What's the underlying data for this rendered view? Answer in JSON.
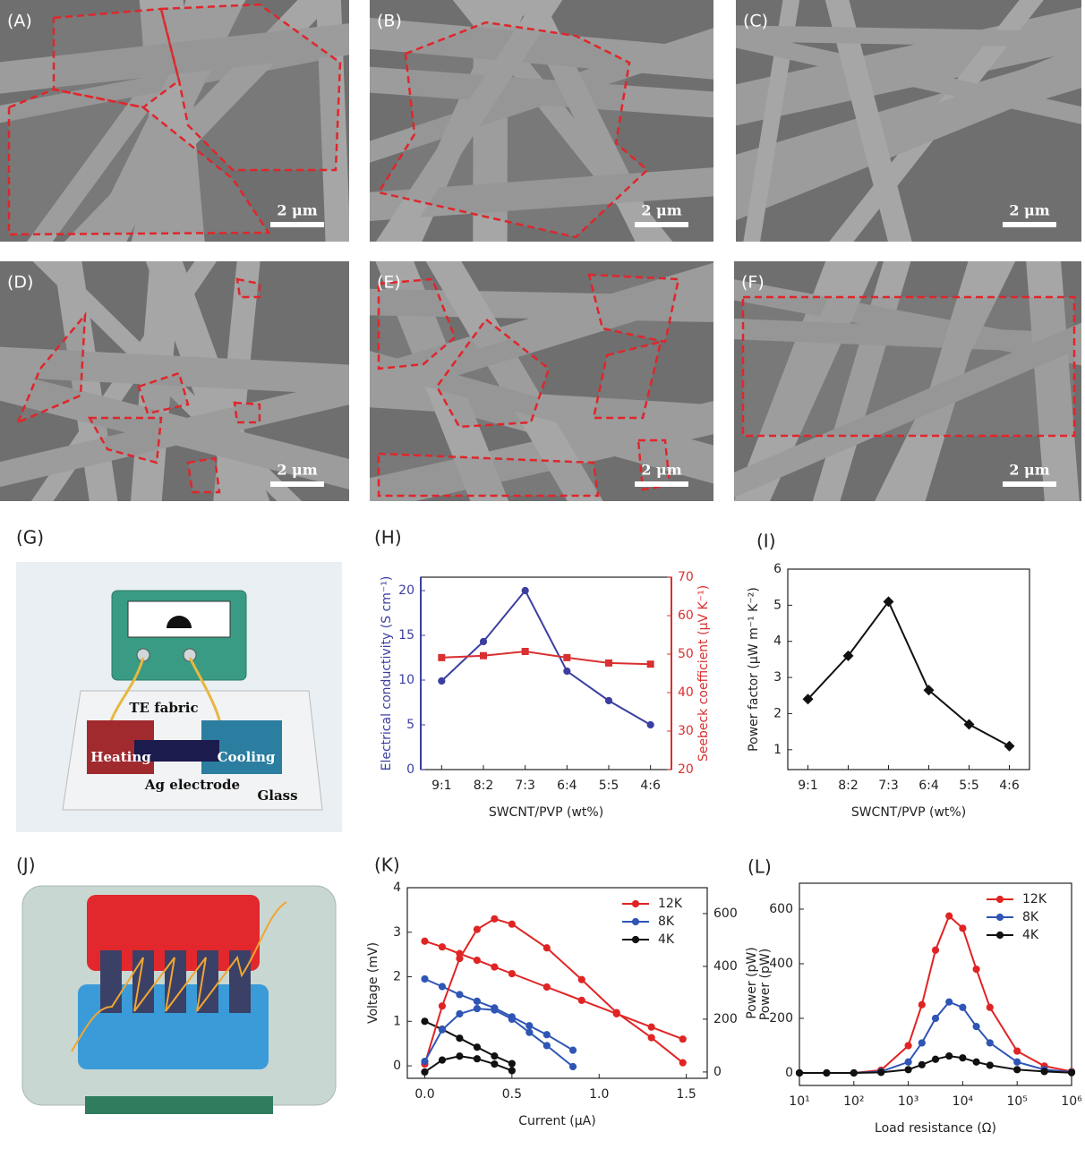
{
  "images": [
    {
      "label": "(A)",
      "scale_bar": "2 μm"
    },
    {
      "label": "(B)",
      "scale_bar": "2 μm"
    },
    {
      "label": "(C)",
      "scale_bar": "2 μm"
    },
    {
      "label": "(D)",
      "scale_bar": "2 μm"
    },
    {
      "label": "(E)",
      "scale_bar": "2 μm"
    },
    {
      "label": "(F)",
      "scale_bar": "2 μm"
    }
  ],
  "diagram_g": {
    "label": "(G)",
    "te_fabric": "TE fabric",
    "heating": "Heating",
    "cooling": "Cooling",
    "ag_electrode": "Ag electrode",
    "glass": "Glass"
  },
  "diagram_j": {
    "label": "(J)"
  },
  "chart_data": [
    {
      "type": "line",
      "panel_label": "(H)",
      "x_label": "SWCNT/PVP (wt%)",
      "y_label": "Electrical conductivity (S cm⁻¹)",
      "y2_label": "Seebeck coefficient (μV K⁻¹)",
      "color_axes": true,
      "categories": [
        "9:1",
        "8:2",
        "7:3",
        "6:4",
        "5:5",
        "4:6"
      ],
      "ylim": [
        0,
        21.5
      ],
      "yticks": [
        0,
        5,
        10,
        15,
        20
      ],
      "y2lim": [
        20,
        70
      ],
      "y2ticks": [
        20,
        30,
        40,
        50,
        60,
        70
      ],
      "series": [
        {
          "color": "#3b3fa0",
          "marker": "circle",
          "values": [
            9.9,
            14.3,
            20,
            11,
            7.7,
            5
          ]
        },
        {
          "color": "#d93030",
          "marker": "square",
          "axis": "y2",
          "values": [
            49.1,
            49.6,
            50.7,
            49.1,
            47.7,
            47.4
          ]
        }
      ]
    },
    {
      "type": "line",
      "panel_label": "(I)",
      "x_label": "SWCNT/PVP (wt%)",
      "y_label": "Power factor (μW m⁻¹ K⁻²)",
      "categories": [
        "9:1",
        "8:2",
        "7:3",
        "6:4",
        "5:5",
        "4:6"
      ],
      "ylim": [
        0.45,
        6
      ],
      "yticks": [
        1,
        2,
        3,
        4,
        5,
        6
      ],
      "series": [
        {
          "color": "#111111",
          "marker": "diamond",
          "values": [
            2.4,
            3.6,
            5.1,
            2.65,
            1.7,
            1.1
          ]
        }
      ]
    },
    {
      "type": "line",
      "panel_label": "(K)",
      "x_label": "Current (μA)",
      "y_label": "Voltage (mV)",
      "y2_label": "Power (pW)",
      "xlim": [
        -0.1,
        1.62
      ],
      "xticks": [
        0.0,
        0.5,
        1.0,
        1.5
      ],
      "ylim": [
        -0.28,
        4
      ],
      "yticks": [
        0,
        1,
        2,
        3,
        4
      ],
      "y2lim": [
        -24,
        698
      ],
      "y2ticks": [
        0,
        200,
        400,
        600
      ],
      "legend": "upper right",
      "series": [
        {
          "name": "12K",
          "color": "#e02424",
          "marker": "circle",
          "x": [
            0,
            0.1,
            0.2,
            0.3,
            0.4,
            0.5,
            0.7,
            0.9,
            1.1,
            1.3,
            1.48
          ],
          "values": [
            2.8,
            2.67,
            2.52,
            2.37,
            2.22,
            2.07,
            1.77,
            1.47,
            1.17,
            0.87,
            0.6
          ]
        },
        {
          "name": "8K",
          "color": "#2f55b5",
          "marker": "circle",
          "x": [
            0,
            0.1,
            0.2,
            0.3,
            0.4,
            0.5,
            0.6,
            0.7,
            0.85
          ],
          "values": [
            1.95,
            1.78,
            1.6,
            1.45,
            1.3,
            1.1,
            0.9,
            0.7,
            0.35
          ]
        },
        {
          "name": "4K",
          "color": "#111111",
          "marker": "circle",
          "x": [
            0,
            0.1,
            0.2,
            0.3,
            0.4,
            0.5
          ],
          "values": [
            1.0,
            0.82,
            0.62,
            0.42,
            0.22,
            0.05
          ]
        },
        {
          "color": "#e02424",
          "marker": "circle",
          "axis": "y2",
          "x": [
            0,
            0.1,
            0.2,
            0.3,
            0.4,
            0.5,
            0.7,
            0.9,
            1.1,
            1.3,
            1.48
          ],
          "values": [
            30,
            250,
            430,
            540,
            580,
            560,
            470,
            350,
            225,
            130,
            35
          ]
        },
        {
          "color": "#2f55b5",
          "marker": "circle",
          "axis": "y2",
          "x": [
            0,
            0.1,
            0.2,
            0.3,
            0.4,
            0.5,
            0.6,
            0.7,
            0.85
          ],
          "values": [
            40,
            160,
            220,
            240,
            235,
            200,
            150,
            100,
            20
          ]
        },
        {
          "color": "#111111",
          "marker": "circle",
          "axis": "y2",
          "x": [
            0,
            0.1,
            0.2,
            0.3,
            0.4,
            0.5
          ],
          "values": [
            0,
            45,
            60,
            50,
            30,
            5
          ]
        }
      ]
    },
    {
      "type": "line",
      "panel_label": "(L)",
      "x_label": "Load resistance (Ω)",
      "y_label": "Power (pW)",
      "xlog": true,
      "xlim": [
        10,
        1000000
      ],
      "xticks": [
        {
          "value": 10,
          "label": "10¹"
        },
        {
          "value": 100,
          "label": "10²"
        },
        {
          "value": 1000,
          "label": "10³"
        },
        {
          "value": 10000,
          "label": "10⁴"
        },
        {
          "value": 100000,
          "label": "10⁵"
        },
        {
          "value": 1000000,
          "label": "10⁶"
        }
      ],
      "ylim": [
        -46,
        695
      ],
      "yticks": [
        0,
        200,
        400,
        600
      ],
      "legend": "upper right",
      "series": [
        {
          "name": "12K",
          "color": "#e02424",
          "marker": "circle",
          "x": [
            10,
            31.6,
            100,
            316,
            1000,
            1778,
            3162,
            5623,
            10000,
            17783,
            31623,
            100000,
            316228,
            1000000
          ],
          "values": [
            0,
            0,
            0,
            10,
            100,
            250,
            450,
            575,
            530,
            380,
            240,
            80,
            25,
            5
          ]
        },
        {
          "name": "8K",
          "color": "#2f55b5",
          "marker": "circle",
          "x": [
            10,
            31.6,
            100,
            316,
            1000,
            1778,
            3162,
            5623,
            10000,
            17783,
            31623,
            100000,
            316228,
            1000000
          ],
          "values": [
            0,
            0,
            0,
            5,
            40,
            110,
            200,
            260,
            240,
            170,
            110,
            40,
            12,
            3
          ]
        },
        {
          "name": "4K",
          "color": "#111111",
          "marker": "circle",
          "x": [
            10,
            31.6,
            100,
            316,
            1000,
            1778,
            3162,
            5623,
            10000,
            17783,
            31623,
            100000,
            316228,
            1000000
          ],
          "values": [
            0,
            0,
            0,
            2,
            12,
            30,
            50,
            62,
            55,
            40,
            28,
            12,
            5,
            1
          ]
        }
      ]
    }
  ]
}
